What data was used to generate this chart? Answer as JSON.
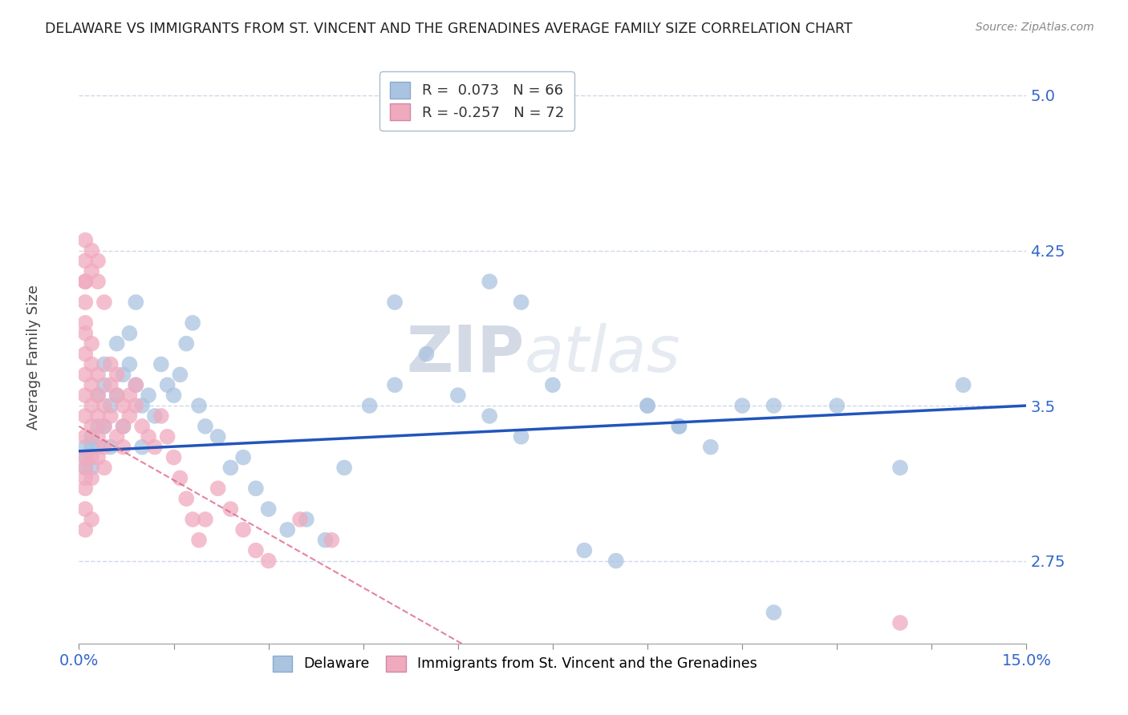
{
  "title": "DELAWARE VS IMMIGRANTS FROM ST. VINCENT AND THE GRENADINES AVERAGE FAMILY SIZE CORRELATION CHART",
  "source": "Source: ZipAtlas.com",
  "ylabel": "Average Family Size",
  "xlim": [
    0.0,
    0.15
  ],
  "ylim": [
    2.35,
    5.15
  ],
  "yticks": [
    2.75,
    3.5,
    4.25,
    5.0
  ],
  "xticks": [
    0.0,
    0.015,
    0.03,
    0.045,
    0.06,
    0.075,
    0.09,
    0.105,
    0.12,
    0.135,
    0.15
  ],
  "xticklabels_show": [
    "0.0%",
    "",
    "",
    "",
    "",
    "",
    "",
    "",
    "",
    "",
    "15.0%"
  ],
  "blue_R": 0.073,
  "blue_N": 66,
  "pink_R": -0.257,
  "pink_N": 72,
  "blue_color": "#aac4e0",
  "pink_color": "#f0aabe",
  "blue_line_color": "#2255bb",
  "pink_line_color": "#dd6688",
  "legend_label_blue": "Delaware",
  "legend_label_pink": "Immigrants from St. Vincent and the Grenadines",
  "watermark": "ZIPatlas",
  "blue_scatter_x": [
    0.001,
    0.001,
    0.001,
    0.002,
    0.002,
    0.002,
    0.003,
    0.003,
    0.003,
    0.004,
    0.004,
    0.004,
    0.005,
    0.005,
    0.006,
    0.006,
    0.007,
    0.007,
    0.008,
    0.008,
    0.009,
    0.009,
    0.01,
    0.01,
    0.011,
    0.012,
    0.013,
    0.014,
    0.015,
    0.016,
    0.017,
    0.018,
    0.019,
    0.02,
    0.022,
    0.024,
    0.026,
    0.028,
    0.03,
    0.033,
    0.036,
    0.039,
    0.042,
    0.046,
    0.05,
    0.055,
    0.06,
    0.065,
    0.07,
    0.075,
    0.08,
    0.085,
    0.09,
    0.095,
    0.1,
    0.105,
    0.11,
    0.12,
    0.13,
    0.14,
    0.05,
    0.065,
    0.07,
    0.09,
    0.095,
    0.11
  ],
  "blue_scatter_y": [
    3.2,
    3.3,
    3.25,
    3.35,
    3.2,
    3.3,
    3.4,
    3.55,
    3.3,
    3.6,
    3.7,
    3.4,
    3.5,
    3.3,
    3.55,
    3.8,
    3.4,
    3.65,
    3.7,
    3.85,
    3.6,
    4.0,
    3.3,
    3.5,
    3.55,
    3.45,
    3.7,
    3.6,
    3.55,
    3.65,
    3.8,
    3.9,
    3.5,
    3.4,
    3.35,
    3.2,
    3.25,
    3.1,
    3.0,
    2.9,
    2.95,
    2.85,
    3.2,
    3.5,
    3.6,
    3.75,
    3.55,
    3.45,
    3.35,
    3.6,
    2.8,
    2.75,
    3.5,
    3.4,
    3.3,
    3.5,
    3.5,
    3.5,
    3.2,
    3.6,
    4.0,
    4.1,
    4.0,
    3.5,
    3.4,
    2.5
  ],
  "pink_scatter_x": [
    0.001,
    0.001,
    0.001,
    0.001,
    0.001,
    0.001,
    0.001,
    0.001,
    0.001,
    0.001,
    0.001,
    0.001,
    0.001,
    0.001,
    0.001,
    0.002,
    0.002,
    0.002,
    0.002,
    0.002,
    0.002,
    0.002,
    0.002,
    0.003,
    0.003,
    0.003,
    0.003,
    0.003,
    0.004,
    0.004,
    0.004,
    0.004,
    0.005,
    0.005,
    0.005,
    0.006,
    0.006,
    0.006,
    0.007,
    0.007,
    0.007,
    0.008,
    0.008,
    0.009,
    0.009,
    0.01,
    0.011,
    0.012,
    0.013,
    0.014,
    0.015,
    0.016,
    0.017,
    0.018,
    0.019,
    0.02,
    0.022,
    0.024,
    0.026,
    0.028,
    0.03,
    0.035,
    0.04,
    0.001,
    0.001,
    0.001,
    0.002,
    0.002,
    0.003,
    0.003,
    0.004,
    0.13
  ],
  "pink_scatter_y": [
    3.2,
    3.35,
    3.45,
    3.55,
    3.65,
    3.75,
    3.85,
    3.9,
    4.0,
    4.1,
    3.1,
    3.0,
    2.9,
    3.25,
    3.15,
    3.4,
    3.5,
    3.6,
    3.7,
    3.8,
    3.25,
    3.15,
    2.95,
    3.45,
    3.55,
    3.65,
    3.35,
    3.25,
    3.5,
    3.4,
    3.3,
    3.2,
    3.6,
    3.7,
    3.45,
    3.55,
    3.65,
    3.35,
    3.5,
    3.4,
    3.3,
    3.45,
    3.55,
    3.6,
    3.5,
    3.4,
    3.35,
    3.3,
    3.45,
    3.35,
    3.25,
    3.15,
    3.05,
    2.95,
    2.85,
    2.95,
    3.1,
    3.0,
    2.9,
    2.8,
    2.75,
    2.95,
    2.85,
    4.3,
    4.2,
    4.1,
    4.25,
    4.15,
    4.2,
    4.1,
    4.0,
    2.45
  ]
}
